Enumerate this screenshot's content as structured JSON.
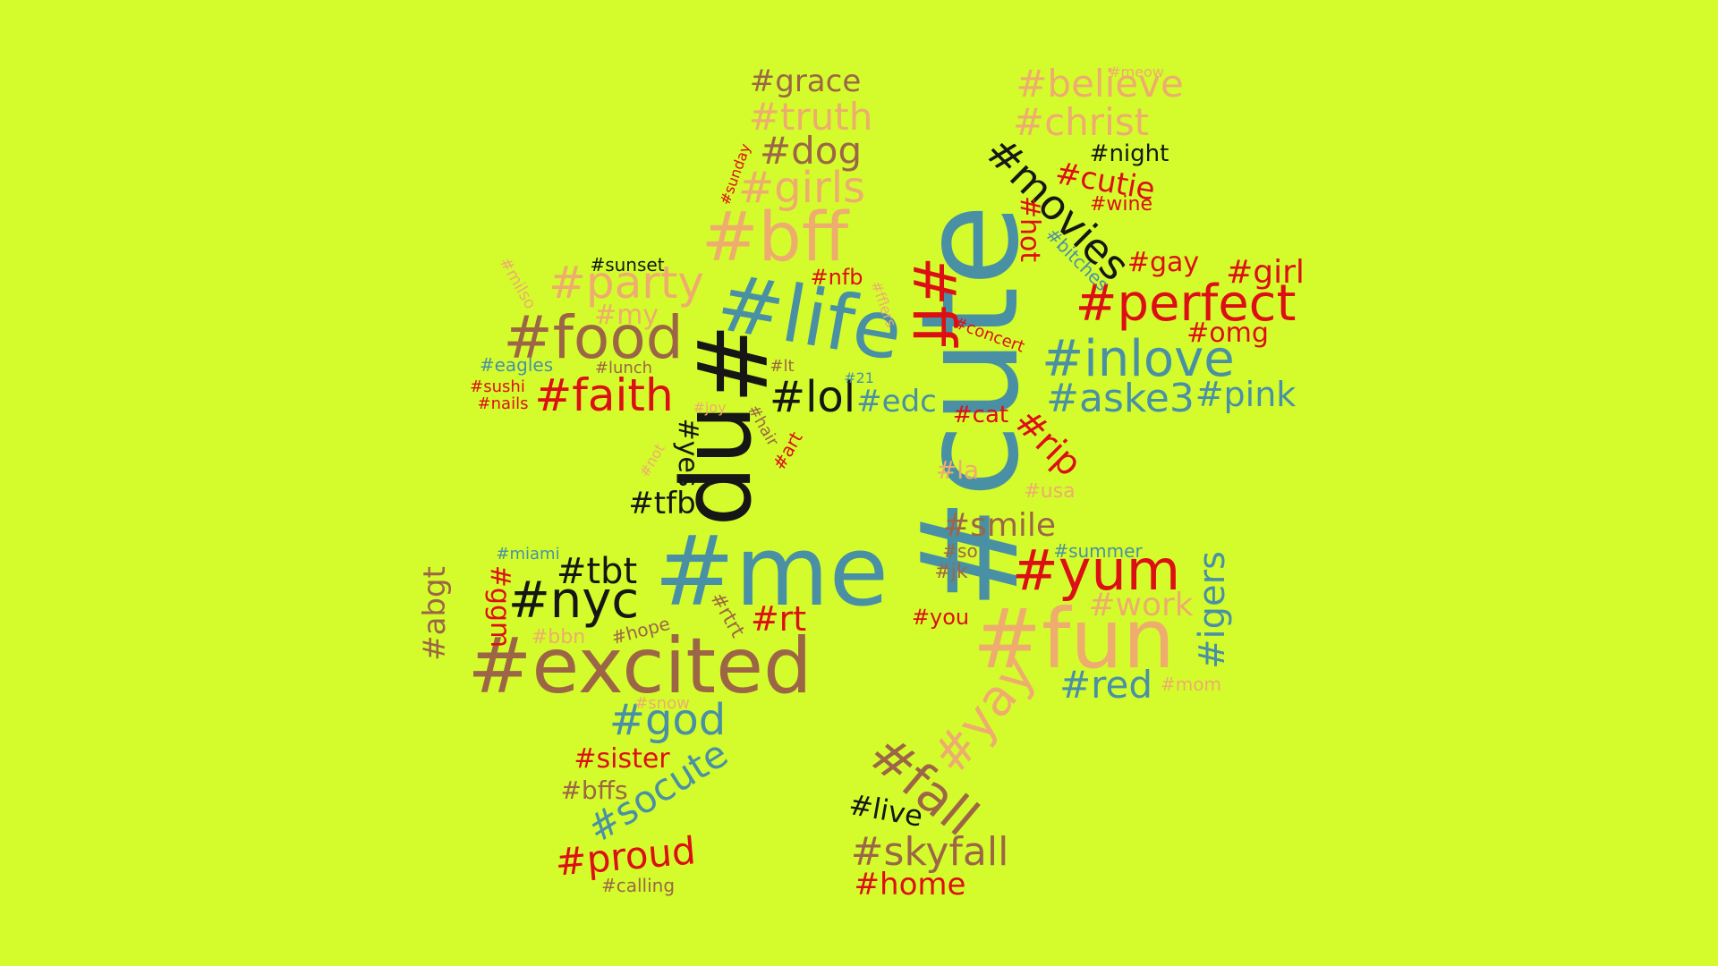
{
  "palette": {
    "background": "#d4fc2c",
    "black": "#161616",
    "red": "#dc0f14",
    "blue": "#4a90a4",
    "brown": "#9c6646",
    "peach": "#eeac6e"
  },
  "words": [
    "#cute",
    "#me",
    "#np",
    "#life",
    "#excited",
    "#fun",
    "#bff",
    "#yum",
    "#food",
    "#nyc",
    "#perfect",
    "#inlove",
    "#ff",
    "#faith",
    "#god",
    "#fall",
    "#yay",
    "#party",
    "#girls",
    "#movies",
    "#skyfall",
    "#christ",
    "#believe",
    "#truth",
    "#dog",
    "#grace",
    "#lol",
    "#aske3",
    "#pink",
    "#igers",
    "#work",
    "#red",
    "#socute",
    "#proud",
    "#girl",
    "#gay",
    "#omg",
    "#tbt",
    "#tfb",
    "#smile",
    "#home",
    "#sister",
    "#bffs",
    "#rt",
    "#rip",
    "#abgt",
    "#ggm",
    "#live",
    "#edc",
    "#cutie",
    "#hot",
    "#night",
    "#wine",
    "#bitches",
    "#concert",
    "#cat",
    "#la",
    "#usa",
    "#summer",
    "#jk",
    "#so",
    "#you",
    "#mom",
    "#yes",
    "#my",
    "#sunset",
    "#milso",
    "#eagles",
    "#lunch",
    "#sushi",
    "#nails",
    "#joy",
    "#not",
    "#hair",
    "#art",
    "#lt",
    "#21",
    "#nfb",
    "#fflers",
    "#sunday",
    "#miami",
    "#hope",
    "#bbn",
    "#rtrt",
    "#snow",
    "#calling",
    "#meow"
  ]
}
